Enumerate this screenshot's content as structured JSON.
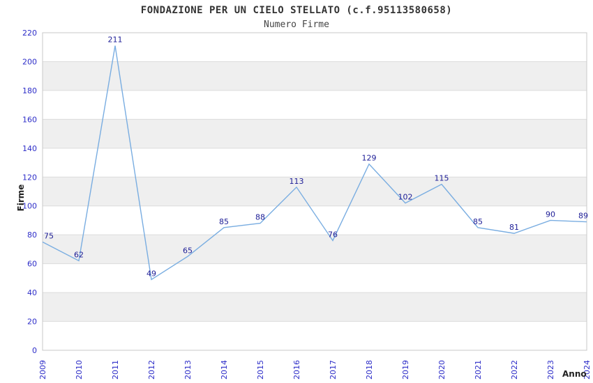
{
  "chart_data": {
    "type": "line",
    "title": "FONDAZIONE PER UN CIELO STELLATO (c.f.95113580658)",
    "subtitle": "Numero Firme",
    "xlabel": "Anno",
    "ylabel": "Firme",
    "categories": [
      "2009",
      "2010",
      "2011",
      "2012",
      "2013",
      "2014",
      "2015",
      "2016",
      "2017",
      "2018",
      "2019",
      "2020",
      "2021",
      "2022",
      "2023",
      "2024"
    ],
    "values": [
      75,
      62,
      211,
      49,
      65,
      85,
      88,
      113,
      76,
      129,
      102,
      115,
      85,
      81,
      90,
      89
    ],
    "ylim": [
      0,
      220
    ],
    "ytick_step": 20,
    "yticks": [
      0,
      20,
      40,
      60,
      80,
      100,
      120,
      140,
      160,
      180,
      200,
      220
    ],
    "legend": "none",
    "grid": "horizontal-banded",
    "colors": {
      "line": "#79ade1",
      "band": "#efefef",
      "grid": "#dcdcdc",
      "border": "#c8c8c8",
      "tick_label": "#2d2dc8",
      "point_label": "#1c1c96",
      "title_text": "#333333",
      "subtitle_text": "#444444",
      "axis_title_text": "#222222",
      "background": "#ffffff"
    }
  }
}
